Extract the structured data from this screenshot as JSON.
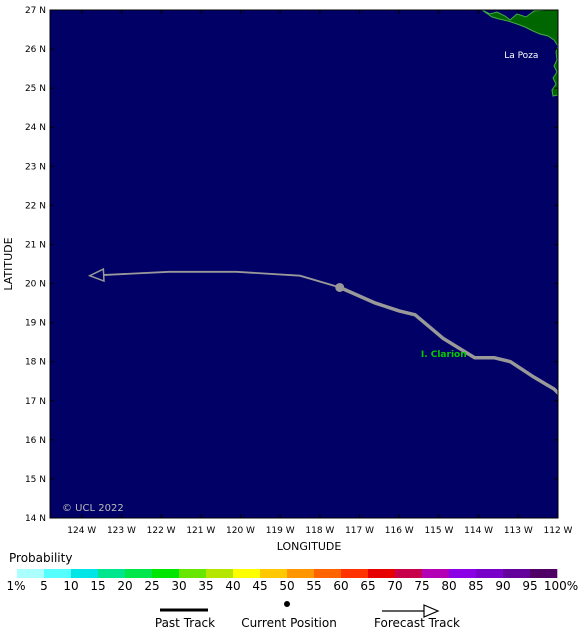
{
  "map": {
    "lon_range": [
      -124.8,
      -112.0
    ],
    "lat_range": [
      14,
      27
    ],
    "ocean_color": "#000066",
    "land_color": "#006600",
    "track_color": "#999999",
    "lat_ticks": [
      "14 N",
      "15 N",
      "16 N",
      "17 N",
      "18 N",
      "19 N",
      "20 N",
      "21 N",
      "22 N",
      "23 N",
      "24 N",
      "25 N",
      "26 N",
      "27 N"
    ],
    "lon_ticks": [
      "124 W",
      "123 W",
      "122 W",
      "121 W",
      "120 W",
      "119 W",
      "118 W",
      "117 W",
      "116 W",
      "115 W",
      "114 W",
      "113 W",
      "112 W"
    ],
    "x_label": "LONGITUDE",
    "y_label": "LATITUDE",
    "copyright": "© UCL 2022",
    "places": [
      {
        "name": "La Poza",
        "lon": -112.6,
        "lat": 25.85,
        "color": "#ffffff"
      },
      {
        "name": "I. Clarion",
        "lon": -114.7,
        "lat": 18.2,
        "color": "#00cc00"
      }
    ],
    "past_track": [
      {
        "lon": -111.8,
        "lat": 17.0
      },
      {
        "lon": -112.1,
        "lat": 17.3
      },
      {
        "lon": -112.6,
        "lat": 17.6
      },
      {
        "lon": -113.2,
        "lat": 18.0
      },
      {
        "lon": -113.6,
        "lat": 18.1
      },
      {
        "lon": -114.1,
        "lat": 18.1
      },
      {
        "lon": -114.9,
        "lat": 18.6
      },
      {
        "lon": -115.6,
        "lat": 19.2
      },
      {
        "lon": -116.0,
        "lat": 19.3
      },
      {
        "lon": -116.6,
        "lat": 19.5
      },
      {
        "lon": -117.5,
        "lat": 19.9
      }
    ],
    "current_position": {
      "lon": -117.5,
      "lat": 19.9
    },
    "forecast_track": [
      {
        "lon": -117.5,
        "lat": 19.9
      },
      {
        "lon": -118.5,
        "lat": 20.2
      },
      {
        "lon": -120.1,
        "lat": 20.3
      },
      {
        "lon": -121.8,
        "lat": 20.3
      },
      {
        "lon": -123.8,
        "lat": 20.2
      }
    ]
  },
  "legend": {
    "title": "Probability",
    "labels": [
      "1%",
      "5",
      "10",
      "15",
      "20",
      "25",
      "30",
      "35",
      "40",
      "45",
      "50",
      "55",
      "60",
      "65",
      "70",
      "75",
      "80",
      "85",
      "90",
      "95",
      "100%"
    ],
    "colors": [
      "#aaffff",
      "#55ffff",
      "#00e6e6",
      "#00e68c",
      "#00e64b",
      "#00e600",
      "#66e600",
      "#b4e600",
      "#ffff00",
      "#ffc800",
      "#ff9600",
      "#ff6400",
      "#ff3200",
      "#e60000",
      "#c8004b",
      "#b400b4",
      "#8c00e6",
      "#7800c8",
      "#64009b",
      "#500064"
    ],
    "past_track_label": "Past Track",
    "current_position_label": "Current Position",
    "forecast_track_label": "Forecast Track"
  }
}
